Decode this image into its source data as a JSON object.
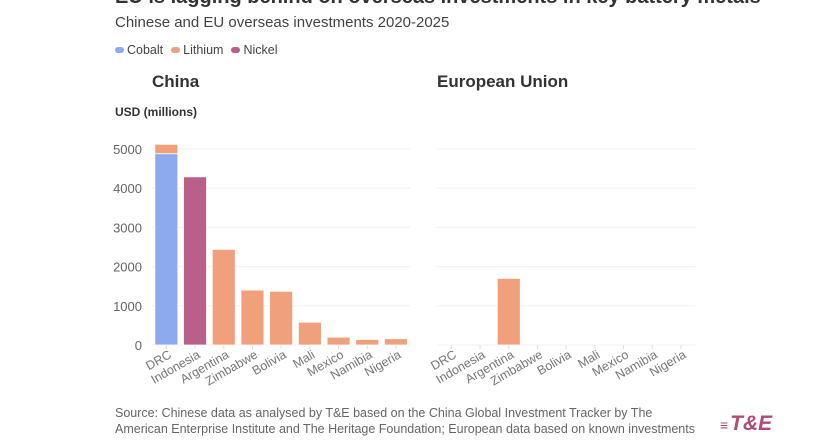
{
  "chart_data": {
    "type": "bar",
    "title": "EU is lagging behind on overseas investments in key battery metals",
    "subtitle": "Chinese and EU overseas investments 2020-2025",
    "ylabel": "USD (millions)",
    "ylim": [
      0,
      5000
    ],
    "yticks": [
      "0",
      "1000",
      "2000",
      "3000",
      "4000",
      "5000"
    ],
    "grid": true,
    "legend_position": "top-left",
    "legend": [
      {
        "name": "Cobalt",
        "color": "#8eaaef"
      },
      {
        "name": "Lithium",
        "color": "#f0a07b"
      },
      {
        "name": "Nickel",
        "color": "#b8608a"
      }
    ],
    "categories": [
      "DRC",
      "Indonesia",
      "Argentina",
      "Zimbabwe",
      "Bolivia",
      "Mali",
      "Mexico",
      "Namibia",
      "Nigeria"
    ],
    "panels": [
      {
        "title": "China",
        "stacked": true,
        "series": [
          {
            "name": "Cobalt",
            "values": [
              4880,
              0,
              0,
              0,
              0,
              0,
              0,
              0,
              0
            ]
          },
          {
            "name": "Lithium",
            "values": [
              240,
              0,
              2440,
              1400,
              1370,
              580,
              200,
              140,
              160
            ]
          },
          {
            "name": "Nickel",
            "values": [
              0,
              4290,
              0,
              0,
              0,
              0,
              0,
              0,
              0
            ]
          }
        ]
      },
      {
        "title": "European Union",
        "stacked": true,
        "series": [
          {
            "name": "Cobalt",
            "values": [
              0,
              0,
              0,
              0,
              0,
              0,
              0,
              0,
              0
            ]
          },
          {
            "name": "Lithium",
            "values": [
              0,
              0,
              1700,
              0,
              0,
              0,
              0,
              0,
              0
            ]
          },
          {
            "name": "Nickel",
            "values": [
              0,
              0,
              0,
              0,
              0,
              0,
              0,
              0,
              0
            ]
          }
        ]
      }
    ]
  },
  "source": "Source: Chinese data as analysed by T&E based on the China Global Investment Tracker by The American Enterprise Institute and The Heritage Foundation; European data based on known investments",
  "logo_text": "T&E"
}
